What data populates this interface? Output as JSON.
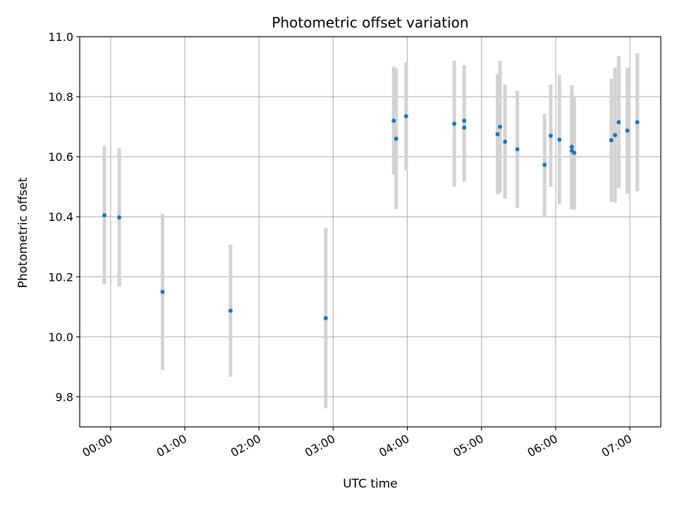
{
  "chart_data": {
    "type": "scatter",
    "title": "Photometric offset variation",
    "xlabel": "UTC time",
    "ylabel": "Photometric offset",
    "xlim": [
      "23:35",
      "07:25"
    ],
    "ylim": [
      9.7,
      11.0
    ],
    "grid": true,
    "x_ticks": [
      "00:00",
      "01:00",
      "02:00",
      "03:00",
      "04:00",
      "05:00",
      "06:00",
      "07:00"
    ],
    "y_ticks": [
      "9.8",
      "10.0",
      "10.2",
      "10.4",
      "10.6",
      "10.8",
      "11.0"
    ],
    "point_color": "#1f77b4",
    "errorbar_color": "#d3d3d3",
    "points": [
      {
        "x": "23:55",
        "y": 10.405,
        "err": 0.23
      },
      {
        "x": "00:07",
        "y": 10.398,
        "err": 0.23
      },
      {
        "x": "00:42",
        "y": 10.15,
        "err": 0.26
      },
      {
        "x": "01:37",
        "y": 10.087,
        "err": 0.22
      },
      {
        "x": "02:54",
        "y": 10.062,
        "err": 0.3
      },
      {
        "x": "03:49",
        "y": 10.72,
        "err": 0.18
      },
      {
        "x": "03:51",
        "y": 10.66,
        "err": 0.235
      },
      {
        "x": "03:59",
        "y": 10.735,
        "err": 0.18
      },
      {
        "x": "04:38",
        "y": 10.71,
        "err": 0.21
      },
      {
        "x": "04:46",
        "y": 10.72,
        "err": 0.185
      },
      {
        "x": "04:46",
        "y": 10.697,
        "err": 0.18
      },
      {
        "x": "05:13",
        "y": 10.675,
        "err": 0.2
      },
      {
        "x": "05:15",
        "y": 10.7,
        "err": 0.22
      },
      {
        "x": "05:19",
        "y": 10.65,
        "err": 0.19
      },
      {
        "x": "05:29",
        "y": 10.625,
        "err": 0.195
      },
      {
        "x": "05:51",
        "y": 10.573,
        "err": 0.17
      },
      {
        "x": "05:56",
        "y": 10.67,
        "err": 0.17
      },
      {
        "x": "06:03",
        "y": 10.657,
        "err": 0.215
      },
      {
        "x": "06:13",
        "y": 10.633,
        "err": 0.205
      },
      {
        "x": "06:13",
        "y": 10.62,
        "err": 0.195
      },
      {
        "x": "06:15",
        "y": 10.613,
        "err": 0.19
      },
      {
        "x": "06:45",
        "y": 10.655,
        "err": 0.205
      },
      {
        "x": "06:48",
        "y": 10.672,
        "err": 0.225
      },
      {
        "x": "06:51",
        "y": 10.715,
        "err": 0.22
      },
      {
        "x": "06:58",
        "y": 10.687,
        "err": 0.21
      },
      {
        "x": "07:06",
        "y": 10.715,
        "err": 0.23
      }
    ]
  }
}
